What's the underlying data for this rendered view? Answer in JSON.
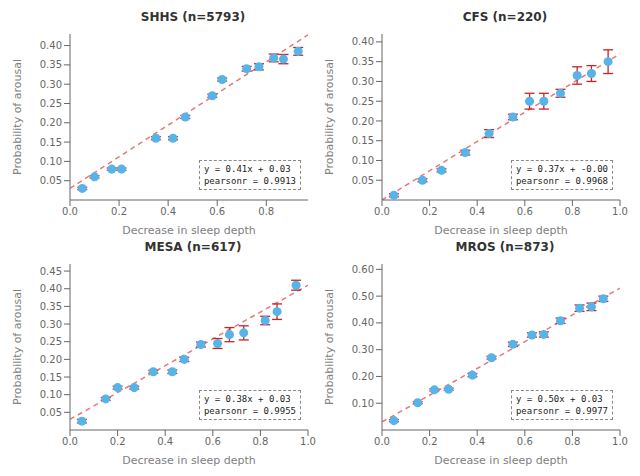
{
  "chart_data": [
    {
      "type": "scatter",
      "title": "SHHS (n=5793)",
      "xlabel": "Decrease in sleep depth",
      "ylabel": "Probability of arousal",
      "annotations": [
        "y = 0.41x + 0.03",
        "pearsonr = 0.9913"
      ],
      "xlim": [
        0.0,
        0.97
      ],
      "ylim": [
        0.0,
        0.43
      ],
      "xticks": [
        {
          "value": 0.0,
          "label": "0.0"
        },
        0.2,
        0.4,
        0.6,
        0.8
      ],
      "yticks": [
        0.05,
        {
          "value": 0.1,
          "label": "0.10"
        },
        0.15,
        {
          "value": 0.2,
          "label": "0.20"
        },
        0.25,
        {
          "value": 0.3,
          "label": "0.30"
        },
        0.35,
        {
          "value": 0.4,
          "label": "0.40"
        }
      ],
      "series": [
        {
          "type": "line",
          "line_style": "dashed",
          "color": "#e87878",
          "x": [
            0.0,
            0.97
          ],
          "values": [
            0.03,
            0.4277
          ]
        },
        {
          "type": "scatter",
          "color": "#56b4e9",
          "x": [
            0.05,
            0.1,
            0.17,
            0.21,
            0.35,
            0.42,
            0.47,
            0.58,
            0.62,
            0.72,
            0.77,
            0.83,
            0.87,
            0.93
          ],
          "values": [
            0.03,
            0.06,
            0.08,
            0.08,
            0.16,
            0.16,
            0.215,
            0.27,
            0.312,
            0.34,
            0.345,
            0.368,
            0.365,
            0.385
          ],
          "yerr": {
            "color": "#cc2222",
            "values": [
              0.003,
              0.003,
              0.003,
              0.003,
              0.004,
              0.004,
              0.004,
              0.004,
              0.004,
              0.006,
              0.008,
              0.01,
              0.012,
              0.01
            ]
          }
        }
      ]
    },
    {
      "type": "scatter",
      "title": "CFS (n=220)",
      "xlabel": "Decrease in sleep depth",
      "ylabel": "Probability of arousal",
      "annotations": [
        "y = 0.37x + -0.00",
        "pearsonr = 0.9968"
      ],
      "xlim": [
        0.0,
        1.0
      ],
      "ylim": [
        0.0,
        0.42
      ],
      "xticks": [
        {
          "value": 0.0,
          "label": "0.0"
        },
        0.2,
        0.4,
        0.6,
        0.8,
        {
          "value": 1.0,
          "label": "1.0"
        }
      ],
      "yticks": [
        0.05,
        {
          "value": 0.1,
          "label": "0.10"
        },
        0.15,
        {
          "value": 0.2,
          "label": "0.20"
        },
        0.25,
        {
          "value": 0.3,
          "label": "0.30"
        },
        0.35,
        {
          "value": 0.4,
          "label": "0.40"
        }
      ],
      "series": [
        {
          "type": "line",
          "line_style": "dashed",
          "color": "#e87878",
          "x": [
            0.0,
            1.0
          ],
          "values": [
            0.0,
            0.37
          ]
        },
        {
          "type": "scatter",
          "color": "#56b4e9",
          "x": [
            0.05,
            0.17,
            0.25,
            0.35,
            0.45,
            0.55,
            0.62,
            0.68,
            0.75,
            0.82,
            0.88,
            0.95
          ],
          "values": [
            0.012,
            0.05,
            0.075,
            0.12,
            0.168,
            0.21,
            0.25,
            0.25,
            0.27,
            0.315,
            0.32,
            0.35
          ],
          "yerr": {
            "color": "#cc2222",
            "values": [
              0.004,
              0.004,
              0.004,
              0.006,
              0.01,
              0.007,
              0.02,
              0.02,
              0.01,
              0.022,
              0.02,
              0.03
            ]
          }
        }
      ]
    },
    {
      "type": "scatter",
      "title": "MESA (n=617)",
      "xlabel": "Decrease in sleep depth",
      "ylabel": "Probability of arousal",
      "annotations": [
        "y = 0.38x + 0.03",
        "pearsonr = 0.9955"
      ],
      "xlim": [
        0.0,
        1.0
      ],
      "ylim": [
        0.0,
        0.47
      ],
      "xticks": [
        {
          "value": 0.0,
          "label": "0.0"
        },
        0.2,
        0.4,
        0.6,
        0.8,
        {
          "value": 1.0,
          "label": "1.0"
        }
      ],
      "yticks": [
        0.05,
        {
          "value": 0.1,
          "label": "0.10"
        },
        0.15,
        {
          "value": 0.2,
          "label": "0.20"
        },
        0.25,
        {
          "value": 0.3,
          "label": "0.30"
        },
        0.35,
        {
          "value": 0.4,
          "label": "0.40"
        },
        0.45
      ],
      "series": [
        {
          "type": "line",
          "line_style": "dashed",
          "color": "#e87878",
          "x": [
            0.0,
            1.0
          ],
          "values": [
            0.03,
            0.41
          ]
        },
        {
          "type": "scatter",
          "color": "#56b4e9",
          "x": [
            0.05,
            0.15,
            0.2,
            0.27,
            0.35,
            0.43,
            0.48,
            0.55,
            0.62,
            0.67,
            0.73,
            0.82,
            0.87,
            0.95
          ],
          "values": [
            0.025,
            0.088,
            0.12,
            0.12,
            0.165,
            0.165,
            0.2,
            0.242,
            0.245,
            0.27,
            0.275,
            0.31,
            0.335,
            0.41
          ],
          "yerr": {
            "color": "#cc2222",
            "values": [
              0.005,
              0.004,
              0.004,
              0.004,
              0.004,
              0.005,
              0.006,
              0.007,
              0.014,
              0.02,
              0.02,
              0.012,
              0.022,
              0.014
            ]
          }
        }
      ]
    },
    {
      "type": "scatter",
      "title": "MROS (n=873)",
      "xlabel": "Decrease in sleep depth",
      "ylabel": "Probability of arousal",
      "annotations": [
        "y = 0.50x + 0.03",
        "pearsonr = 0.9977"
      ],
      "xlim": [
        0.0,
        1.0
      ],
      "ylim": [
        0.0,
        0.62
      ],
      "xticks": [
        {
          "value": 0.0,
          "label": "0.0"
        },
        0.2,
        0.4,
        0.6,
        0.8,
        {
          "value": 1.0,
          "label": "1.0"
        }
      ],
      "yticks": [
        {
          "value": 0.1,
          "label": "0.10"
        },
        {
          "value": 0.2,
          "label": "0.20"
        },
        {
          "value": 0.3,
          "label": "0.30"
        },
        {
          "value": 0.4,
          "label": "0.40"
        },
        {
          "value": 0.5,
          "label": "0.50"
        },
        {
          "value": 0.6,
          "label": "0.60"
        }
      ],
      "series": [
        {
          "type": "line",
          "line_style": "dashed",
          "color": "#e87878",
          "x": [
            0.0,
            1.0
          ],
          "values": [
            0.03,
            0.53
          ]
        },
        {
          "type": "scatter",
          "color": "#56b4e9",
          "x": [
            0.05,
            0.15,
            0.22,
            0.28,
            0.38,
            0.46,
            0.55,
            0.63,
            0.68,
            0.75,
            0.83,
            0.88,
            0.93
          ],
          "values": [
            0.035,
            0.102,
            0.15,
            0.152,
            0.205,
            0.27,
            0.32,
            0.355,
            0.357,
            0.408,
            0.455,
            0.46,
            0.49
          ],
          "yerr": {
            "color": "#cc2222",
            "values": [
              0.004,
              0.004,
              0.004,
              0.004,
              0.006,
              0.005,
              0.008,
              0.008,
              0.01,
              0.01,
              0.012,
              0.014,
              0.01
            ]
          }
        }
      ]
    }
  ]
}
